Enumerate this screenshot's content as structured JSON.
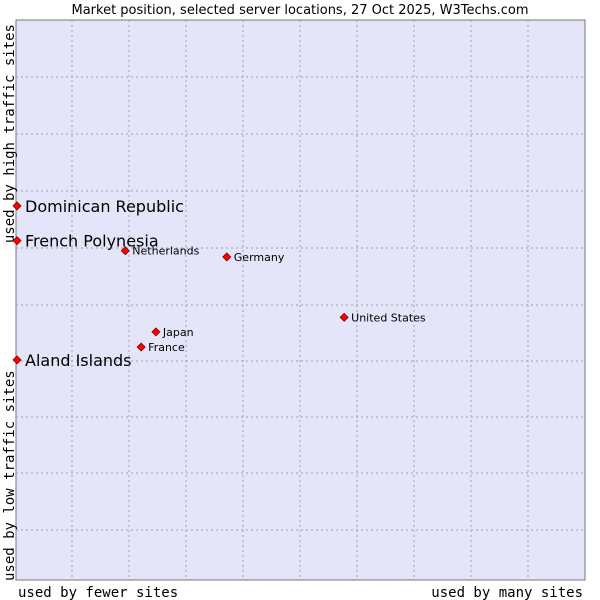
{
  "chart_data": {
    "type": "scatter",
    "title": "Market position, selected server locations, 27 Oct 2025, W3Techs.com",
    "xlabel_low": "used by fewer sites",
    "xlabel_high": "used by many sites",
    "ylabel_low": "used by low traffic sites",
    "ylabel_high": "used by high traffic sites",
    "xlim": [
      0,
      100
    ],
    "ylim": [
      0,
      100
    ],
    "grid": true,
    "colors": {
      "plot_background": "#e5e5fa",
      "grid": "#a0a0a8",
      "point": "#ff0000",
      "point_edge": "#8b0000"
    },
    "points": [
      {
        "name": "Dominican Republic",
        "x": 0.0,
        "y": 66.8,
        "highlight": true
      },
      {
        "name": "French Polynesia",
        "x": 0.0,
        "y": 60.6,
        "highlight": true
      },
      {
        "name": "Aland Islands",
        "x": 0.0,
        "y": 39.3,
        "highlight": true
      },
      {
        "name": "Netherlands",
        "x": 19.1,
        "y": 58.8,
        "highlight": false
      },
      {
        "name": "Germany",
        "x": 37.0,
        "y": 57.7,
        "highlight": false
      },
      {
        "name": "United States",
        "x": 57.7,
        "y": 46.9,
        "highlight": false
      },
      {
        "name": "Japan",
        "x": 24.5,
        "y": 44.3,
        "highlight": false
      },
      {
        "name": "France",
        "x": 21.9,
        "y": 41.6,
        "highlight": false
      }
    ]
  }
}
